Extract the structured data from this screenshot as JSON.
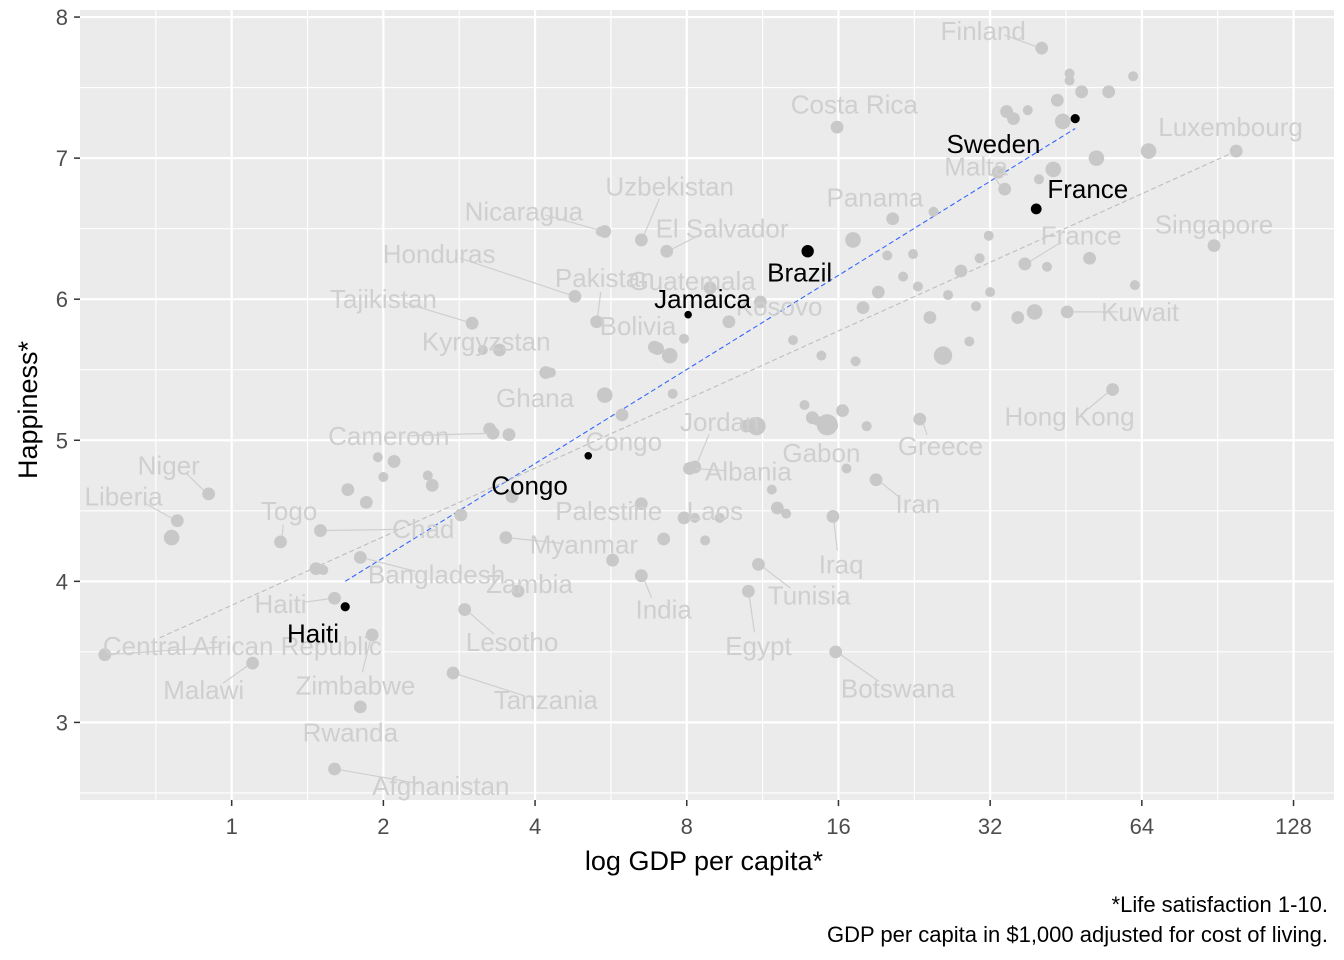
{
  "chart_data": {
    "type": "scatter",
    "xlabel": "log GDP per capita*",
    "ylabel": "Happiness*",
    "caption": [
      "*Life satisfaction 1-10.",
      "GDP per capita in $1,000 adjusted for cost of living."
    ],
    "x_scale": "log2",
    "xlim": [
      0.5,
      154
    ],
    "ylim": [
      2.45,
      8.05
    ],
    "x_ticks": [
      1,
      2,
      4,
      8,
      16,
      32,
      64,
      128
    ],
    "x_tick_labels": [
      "1",
      "2",
      "4",
      "8",
      "16",
      "32",
      "64",
      "128"
    ],
    "y_ticks": [
      3,
      4,
      5,
      6,
      7,
      8
    ],
    "y_tick_labels": [
      "3",
      "4",
      "5",
      "6",
      "7",
      "8"
    ],
    "grid": true,
    "colors": {
      "panel": "#EBEBEB",
      "grid": "#FFFFFF",
      "background_points": "#C8C8C8",
      "background_labels": "#CFCFCF",
      "highlight": "#000000",
      "highlight_fit": "#3366FF",
      "all_fit": "#BDBDBD"
    },
    "fits": [
      {
        "group": "highlighted",
        "x": [
          1.68,
          47.2
        ],
        "y": [
          4.0,
          7.21
        ]
      },
      {
        "group": "all",
        "x": [
          0.72,
          98.5
        ],
        "y": [
          3.6,
          7.05
        ]
      }
    ],
    "highlighted": [
      {
        "label": "Sweden",
        "x": 47.2,
        "y": 7.28,
        "size": 3,
        "label_x": 32.5,
        "label_y": 7.1
      },
      {
        "label": "France",
        "x": 39.5,
        "y": 6.64,
        "size": 4,
        "label_x": 50.0,
        "label_y": 6.78
      },
      {
        "label": "Brazil",
        "x": 13.9,
        "y": 6.34,
        "size": 5,
        "label_x": 13.4,
        "label_y": 6.19
      },
      {
        "label": "Jamaica",
        "x": 8.05,
        "y": 5.89,
        "size": 2,
        "label_x": 8.6,
        "label_y": 6.0
      },
      {
        "label": "Congo",
        "x": 5.1,
        "y": 4.89,
        "size": 2,
        "label_x": 3.9,
        "label_y": 4.68
      },
      {
        "label": "Haiti",
        "x": 1.68,
        "y": 3.82,
        "size": 3,
        "label_x": 1.45,
        "label_y": 3.63
      }
    ],
    "countries": [
      {
        "label": "Finland",
        "x": 40.5,
        "y": 7.78,
        "label_x": 31.0,
        "label_y": 7.9
      },
      {
        "label": "Costa Rica",
        "x": 15.9,
        "y": 7.22,
        "label_x": 17.2,
        "label_y": 7.38
      },
      {
        "label": "Luxembourg",
        "x": 98.5,
        "y": 7.05,
        "label_x": 96.0,
        "label_y": 7.22
      },
      {
        "label": "Malta",
        "x": 34.2,
        "y": 6.78,
        "label_x": 30.0,
        "label_y": 6.94
      },
      {
        "label": "Panama",
        "x": 20.5,
        "y": 6.57,
        "label_x": 18.9,
        "label_y": 6.72
      },
      {
        "label": "Uzbekistan",
        "x": 6.5,
        "y": 6.42,
        "label_x": 7.4,
        "label_y": 6.8
      },
      {
        "label": "El Salvador",
        "x": 7.3,
        "y": 6.34,
        "label_x": 9.4,
        "label_y": 6.5
      },
      {
        "label": "Nicaragua",
        "x": 5.5,
        "y": 6.48,
        "label_x": 3.8,
        "label_y": 6.62
      },
      {
        "label": "France",
        "x": 37.5,
        "y": 6.25,
        "label_x": 48.5,
        "label_y": 6.45
      },
      {
        "label": "Singapore",
        "x": 89.0,
        "y": 6.38,
        "label_x": 89.0,
        "label_y": 6.53
      },
      {
        "label": "Honduras",
        "x": 4.8,
        "y": 6.02,
        "label_x": 2.58,
        "label_y": 6.32
      },
      {
        "label": "Pakistan",
        "x": 5.3,
        "y": 5.84,
        "label_x": 5.5,
        "label_y": 6.15
      },
      {
        "label": "Guatemala",
        "x": 8.9,
        "y": 6.08,
        "label_x": 8.2,
        "label_y": 6.13
      },
      {
        "label": "Kosovo",
        "x": 11.2,
        "y": 5.98,
        "label_x": 12.2,
        "label_y": 5.95
      },
      {
        "label": "Tajikistan",
        "x": 3.0,
        "y": 5.83,
        "label_x": 2.0,
        "label_y": 6.0
      },
      {
        "label": "Bolivia",
        "x": 7.0,
        "y": 5.65,
        "label_x": 6.4,
        "label_y": 5.81
      },
      {
        "label": "Kuwait",
        "x": 45.5,
        "y": 5.91,
        "label_x": 63.5,
        "label_y": 5.91
      },
      {
        "label": "Kyrgyzstan",
        "x": 3.4,
        "y": 5.64,
        "label_x": 3.2,
        "label_y": 5.7
      },
      {
        "label": "Ghana",
        "x": 4.2,
        "y": 5.48,
        "label_x": 4.0,
        "label_y": 5.3
      },
      {
        "label": "Hong Kong",
        "x": 56.0,
        "y": 5.36,
        "label_x": 46.0,
        "label_y": 5.17
      },
      {
        "label": "Jordan",
        "x": 8.3,
        "y": 4.81,
        "label_x": 9.3,
        "label_y": 5.13
      },
      {
        "label": "Cameroon",
        "x": 3.3,
        "y": 5.05,
        "label_x": 2.05,
        "label_y": 5.03
      },
      {
        "label": "Congo",
        "x": 5.95,
        "y": 5.18,
        "label_x": 6.0,
        "label_y": 4.99
      },
      {
        "label": "Gabon",
        "x": 15.5,
        "y": 5.1,
        "label_x": 14.8,
        "label_y": 4.91
      },
      {
        "label": "Greece",
        "x": 23.2,
        "y": 5.15,
        "label_x": 25.5,
        "label_y": 4.96
      },
      {
        "label": "Albania",
        "x": 8.1,
        "y": 4.8,
        "label_x": 10.6,
        "label_y": 4.78
      },
      {
        "label": "Niger",
        "x": 0.9,
        "y": 4.62,
        "label_x": 0.75,
        "label_y": 4.82
      },
      {
        "label": "Liberia",
        "x": 0.78,
        "y": 4.43,
        "label_x": 0.61,
        "label_y": 4.6
      },
      {
        "label": "Togo",
        "x": 1.25,
        "y": 4.28,
        "label_x": 1.3,
        "label_y": 4.5
      },
      {
        "label": "Iran",
        "x": 19.0,
        "y": 4.72,
        "label_x": 23.0,
        "label_y": 4.55
      },
      {
        "label": "Palestine",
        "x": 6.5,
        "y": 4.55,
        "label_x": 5.6,
        "label_y": 4.5
      },
      {
        "label": "Laos",
        "x": 7.9,
        "y": 4.45,
        "label_x": 9.1,
        "label_y": 4.5
      },
      {
        "label": "Chad",
        "x": 1.5,
        "y": 4.36,
        "label_x": 2.4,
        "label_y": 4.37
      },
      {
        "label": "Myanmar",
        "x": 3.5,
        "y": 4.31,
        "label_x": 5.0,
        "label_y": 4.26
      },
      {
        "label": "Iraq",
        "x": 15.6,
        "y": 4.46,
        "label_x": 16.2,
        "label_y": 4.12
      },
      {
        "label": "Bangladesh",
        "x": 1.8,
        "y": 4.17,
        "label_x": 2.55,
        "label_y": 4.05
      },
      {
        "label": "Zambia",
        "x": 3.7,
        "y": 3.93,
        "label_x": 3.9,
        "label_y": 3.98
      },
      {
        "label": "India",
        "x": 6.5,
        "y": 4.04,
        "label_x": 7.2,
        "label_y": 3.8
      },
      {
        "label": "Tunisia",
        "x": 11.1,
        "y": 4.12,
        "label_x": 14.0,
        "label_y": 3.9
      },
      {
        "label": "Haiti",
        "x": 1.6,
        "y": 3.88,
        "label_x": 1.25,
        "label_y": 3.84
      },
      {
        "label": "Egypt",
        "x": 10.6,
        "y": 3.93,
        "label_x": 11.1,
        "label_y": 3.54
      },
      {
        "label": "Central African Republic",
        "x": 0.56,
        "y": 3.48,
        "label_x": 1.05,
        "label_y": 3.54
      },
      {
        "label": "Lesotho",
        "x": 2.9,
        "y": 3.8,
        "label_x": 3.6,
        "label_y": 3.57
      },
      {
        "label": "Zimbabwe",
        "x": 1.9,
        "y": 3.62,
        "label_x": 1.76,
        "label_y": 3.26
      },
      {
        "label": "Botswana",
        "x": 15.8,
        "y": 3.5,
        "label_x": 21.0,
        "label_y": 3.24
      },
      {
        "label": "Malawi",
        "x": 1.1,
        "y": 3.42,
        "label_x": 0.88,
        "label_y": 3.23
      },
      {
        "label": "Tanzania",
        "x": 2.75,
        "y": 3.35,
        "label_x": 4.2,
        "label_y": 3.16
      },
      {
        "label": "Rwanda",
        "x": 1.8,
        "y": 3.11,
        "label_x": 1.72,
        "label_y": 2.93
      },
      {
        "label": "Afghanistan",
        "x": 1.6,
        "y": 2.67,
        "label_x": 2.6,
        "label_y": 2.55
      }
    ],
    "other_points": [
      [
        0.76,
        4.31,
        4
      ],
      [
        1.47,
        4.09,
        3
      ],
      [
        1.52,
        4.08,
        2
      ],
      [
        1.7,
        4.65,
        3
      ],
      [
        1.85,
        4.56,
        3
      ],
      [
        1.95,
        4.88,
        2
      ],
      [
        2.1,
        4.85,
        3
      ],
      [
        2.0,
        4.74,
        2
      ],
      [
        2.45,
        4.75,
        2
      ],
      [
        2.5,
        4.68,
        3
      ],
      [
        2.85,
        4.47,
        3
      ],
      [
        3.25,
        5.08,
        3
      ],
      [
        3.55,
        5.04,
        3
      ],
      [
        3.6,
        4.6,
        3
      ],
      [
        3.15,
        5.64,
        2
      ],
      [
        4.3,
        5.48,
        2
      ],
      [
        5.5,
        5.32,
        4
      ],
      [
        5.4,
        6.48,
        2
      ],
      [
        5.7,
        4.15,
        3
      ],
      [
        6.9,
        5.66,
        3
      ],
      [
        7.4,
        5.6,
        4
      ],
      [
        7.5,
        5.33,
        2
      ],
      [
        7.2,
        4.3,
        3
      ],
      [
        8.3,
        4.45,
        2
      ],
      [
        8.7,
        4.29,
        2
      ],
      [
        9.3,
        4.45,
        2
      ],
      [
        9.7,
        5.84,
        3
      ],
      [
        10.5,
        5.1,
        3
      ],
      [
        11.0,
        5.1,
        5
      ],
      [
        11.8,
        4.65,
        2
      ],
      [
        12.1,
        4.52,
        3
      ],
      [
        12.6,
        4.48,
        2
      ],
      [
        13.0,
        5.71,
        2
      ],
      [
        13.7,
        5.25,
        2
      ],
      [
        14.2,
        5.16,
        3
      ],
      [
        14.5,
        5.14,
        2
      ],
      [
        14.8,
        5.6,
        2
      ],
      [
        15.2,
        5.11,
        6
      ],
      [
        16.3,
        5.21,
        3
      ],
      [
        16.6,
        4.8,
        2
      ],
      [
        17.1,
        6.42,
        4
      ],
      [
        17.3,
        5.56,
        2
      ],
      [
        17.9,
        5.94,
        3
      ],
      [
        18.2,
        5.1,
        2
      ],
      [
        19.2,
        6.05,
        3
      ],
      [
        20.0,
        6.31,
        2
      ],
      [
        21.5,
        6.16,
        2
      ],
      [
        22.5,
        6.32,
        2
      ],
      [
        23.0,
        6.09,
        2
      ],
      [
        24.3,
        5.87,
        3
      ],
      [
        25.8,
        5.6,
        5
      ],
      [
        26.4,
        6.03,
        2
      ],
      [
        28.0,
        6.2,
        3
      ],
      [
        29.1,
        5.7,
        2
      ],
      [
        30.0,
        5.95,
        2
      ],
      [
        30.5,
        6.29,
        2
      ],
      [
        31.8,
        6.45,
        2
      ],
      [
        32.0,
        6.05,
        2
      ],
      [
        33.2,
        6.9,
        3
      ],
      [
        34.5,
        7.33,
        3
      ],
      [
        35.6,
        7.28,
        3
      ],
      [
        36.3,
        5.87,
        3
      ],
      [
        38.0,
        7.34,
        2
      ],
      [
        39.2,
        5.91,
        4
      ],
      [
        41.5,
        6.23,
        2
      ],
      [
        42.7,
        6.92,
        4
      ],
      [
        43.5,
        7.41,
        3
      ],
      [
        44.6,
        7.26,
        4
      ],
      [
        46.0,
        7.55,
        2
      ],
      [
        48.6,
        7.47,
        3
      ],
      [
        50.4,
        6.29,
        3
      ],
      [
        52.0,
        7.0,
        4
      ],
      [
        55.0,
        7.47,
        3
      ],
      [
        62.0,
        6.1,
        2
      ],
      [
        61.5,
        7.58,
        2
      ],
      [
        66.0,
        7.05,
        4
      ],
      [
        46.0,
        7.6,
        2
      ],
      [
        40.0,
        6.85,
        2
      ],
      [
        24.7,
        6.62,
        2
      ],
      [
        7.9,
        5.72,
        2
      ]
    ]
  }
}
